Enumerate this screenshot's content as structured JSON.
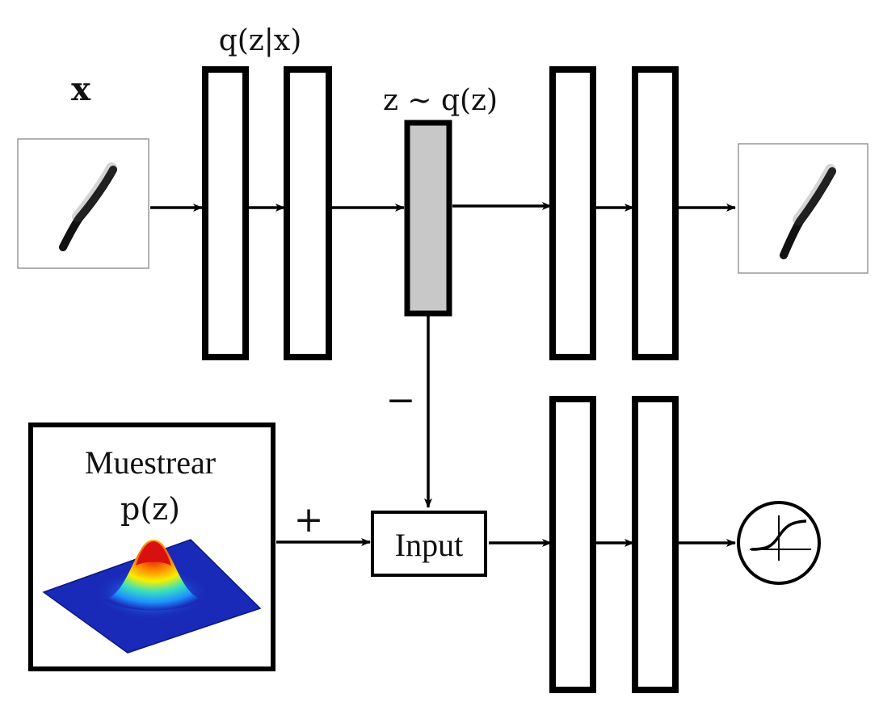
{
  "diagram": {
    "input_label": "x",
    "encoder_label": "q(z|x)",
    "latent_label": "z ~ q(z)",
    "minus_sign": "−",
    "plus_sign": "+",
    "sample_box_title": "Muestrear",
    "sample_box_formula": "p(z)",
    "input_node_label": "Input"
  },
  "icons": {
    "digit_input": "handwritten-digit-one-icon",
    "digit_output": "handwritten-digit-one-icon",
    "gaussian_surface": "gaussian-surface-plot-icon",
    "sigmoid": "sigmoid-activation-icon"
  },
  "colors": {
    "stroke": "#000000",
    "latent_fill": "#c8c8c8",
    "surface_low": "#1a2ab8",
    "surface_high": "#d81010"
  }
}
